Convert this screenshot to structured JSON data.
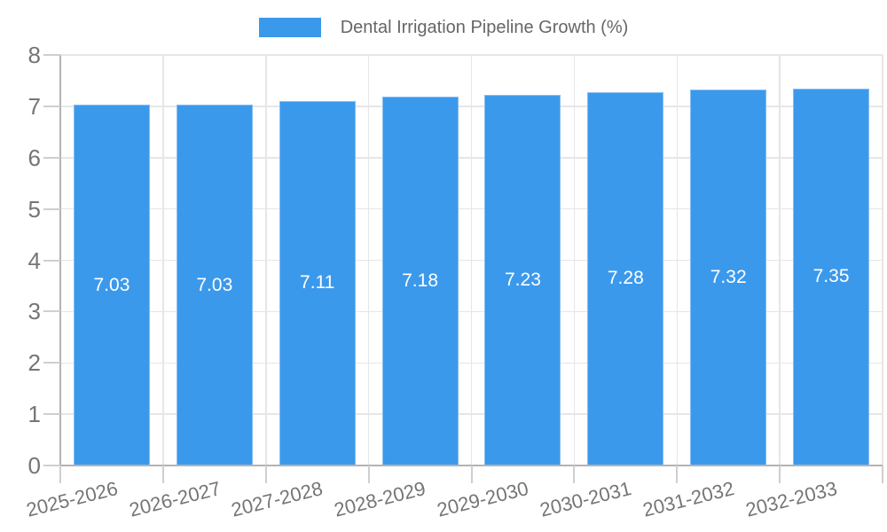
{
  "legend": {
    "label": "Dental Irrigation Pipeline Growth (%)"
  },
  "chart_data": {
    "type": "bar",
    "title": "Dental Irrigation Pipeline Growth (%)",
    "categories": [
      "2025-2026",
      "2026-2027",
      "2027-2028",
      "2028-2029",
      "2029-2030",
      "2030-2031",
      "2031-2032",
      "2032-2033"
    ],
    "values": [
      7.03,
      7.03,
      7.11,
      7.18,
      7.23,
      7.28,
      7.32,
      7.35
    ],
    "bar_labels": [
      "7.03",
      "7.03",
      "7.11",
      "7.18",
      "7.23",
      "7.28",
      "7.32",
      "7.35"
    ],
    "xlabel": "",
    "ylabel": "",
    "ylim": [
      0,
      8
    ],
    "yticks": [
      0,
      1,
      2,
      3,
      4,
      5,
      6,
      7,
      8
    ],
    "grid": true,
    "legend_position": "top",
    "colors": {
      "bar_fill": "#3b99ec",
      "bar_border": "#85bdf1",
      "grid": "#e6e6e6",
      "axis": "#b3b3b3",
      "tick": "#cfcfcf",
      "tick_label": "#757575",
      "bar_label": "#ffffff",
      "legend_text": "#666666"
    }
  }
}
